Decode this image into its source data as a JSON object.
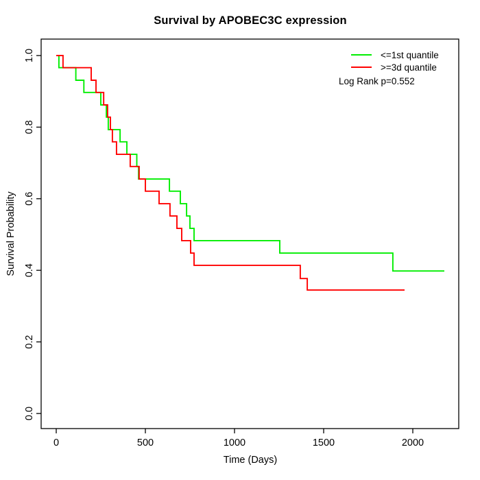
{
  "chart_data": {
    "type": "line",
    "subtype": "kaplan-meier-step",
    "title": "Survival by APOBEC3C expression",
    "xlabel": "Time (Days)",
    "ylabel": "Survival Probability",
    "xlim": [
      0,
      2250
    ],
    "ylim": [
      0,
      1
    ],
    "x_ticks": [
      0,
      500,
      1000,
      1500,
      2000
    ],
    "y_ticks": [
      0.0,
      0.2,
      0.4,
      0.6,
      0.8,
      1.0
    ],
    "grid": false,
    "legend_position": "top-right-inside",
    "annotation": "Log Rank p=0.552",
    "axis_color": "#000000",
    "series": [
      {
        "name": "<=1st quantile",
        "color": "#00ee00",
        "points": [
          [
            0,
            1.0
          ],
          [
            15,
            0.966
          ],
          [
            110,
            0.931
          ],
          [
            155,
            0.897
          ],
          [
            250,
            0.862
          ],
          [
            281,
            0.828
          ],
          [
            292,
            0.793
          ],
          [
            358,
            0.759
          ],
          [
            396,
            0.724
          ],
          [
            452,
            0.69
          ],
          [
            462,
            0.655
          ],
          [
            635,
            0.621
          ],
          [
            696,
            0.586
          ],
          [
            731,
            0.552
          ],
          [
            750,
            0.517
          ],
          [
            773,
            0.483
          ],
          [
            1254,
            0.448
          ],
          [
            1888,
            0.398
          ],
          [
            2177,
            0.398
          ]
        ]
      },
      {
        "name": ">=3d quantile",
        "color": "#ff0000",
        "points": [
          [
            0,
            1.0
          ],
          [
            38,
            0.966
          ],
          [
            196,
            0.931
          ],
          [
            223,
            0.897
          ],
          [
            266,
            0.862
          ],
          [
            288,
            0.828
          ],
          [
            304,
            0.793
          ],
          [
            315,
            0.759
          ],
          [
            338,
            0.724
          ],
          [
            415,
            0.69
          ],
          [
            465,
            0.655
          ],
          [
            500,
            0.621
          ],
          [
            577,
            0.586
          ],
          [
            638,
            0.552
          ],
          [
            677,
            0.517
          ],
          [
            704,
            0.483
          ],
          [
            754,
            0.448
          ],
          [
            773,
            0.414
          ],
          [
            1369,
            0.377
          ],
          [
            1408,
            0.345
          ],
          [
            1954,
            0.345
          ]
        ]
      }
    ]
  }
}
